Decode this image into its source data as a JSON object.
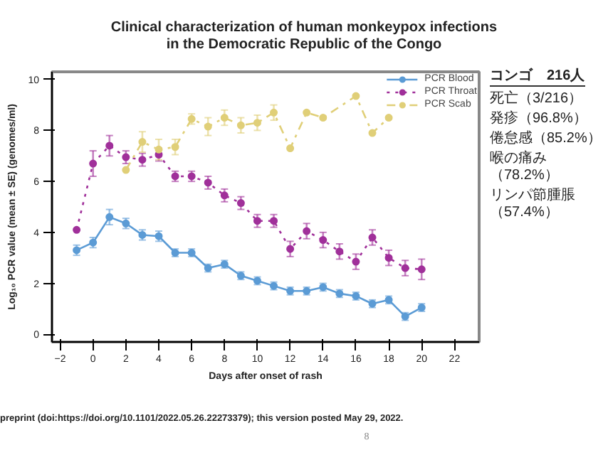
{
  "chart_data": {
    "type": "line",
    "title": "Clinical characterization of human monkeypox infections\nin the Democratic Republic of the Congo",
    "xlabel": "Days after onset of rash",
    "ylabel": "Log₁₀ PCR value (mean ± SE) (genomes/ml)",
    "xlim": [
      -2.5,
      23.5
    ],
    "xticks": [
      -2,
      0,
      2,
      4,
      6,
      8,
      10,
      12,
      14,
      16,
      18,
      20,
      22
    ],
    "ylim": [
      -0.3,
      10.3
    ],
    "yticks": [
      0,
      2,
      4,
      6,
      8,
      10
    ],
    "marker": "circle",
    "legend": "top right",
    "grid": false,
    "series": [
      {
        "name": "PCR Blood",
        "color": "#5b9bd5",
        "line_style": "solid",
        "x": [
          -1,
          0,
          1,
          2,
          3,
          4,
          5,
          6,
          7,
          8,
          9,
          10,
          11,
          12,
          13,
          14,
          15,
          16,
          17,
          18,
          19,
          20
        ],
        "values": [
          3.3,
          3.6,
          4.6,
          4.35,
          3.9,
          3.85,
          3.2,
          3.2,
          2.6,
          2.75,
          2.3,
          2.1,
          1.9,
          1.7,
          1.7,
          1.85,
          1.6,
          1.5,
          1.2,
          1.35,
          0.7,
          1.05
        ],
        "errors": [
          0.2,
          0.2,
          0.3,
          0.2,
          0.2,
          0.2,
          0.15,
          0.15,
          0.15,
          0.15,
          0.15,
          0.15,
          0.15,
          0.15,
          0.15,
          0.15,
          0.15,
          0.15,
          0.15,
          0.15,
          0.15,
          0.15
        ]
      },
      {
        "name": "PCR Throat",
        "color": "#a0309a",
        "line_style": "dotted",
        "x": [
          -1,
          0,
          1,
          2,
          3,
          4,
          5,
          6,
          7,
          8,
          9,
          10,
          11,
          12,
          13,
          14,
          15,
          16,
          17,
          18,
          19,
          20
        ],
        "values": [
          4.1,
          6.7,
          7.4,
          6.95,
          6.85,
          7.05,
          6.2,
          6.2,
          5.95,
          5.45,
          5.15,
          4.45,
          4.45,
          3.35,
          4.05,
          3.7,
          3.25,
          2.85,
          3.8,
          3.0,
          2.6,
          2.55
        ],
        "errors": [
          null,
          0.5,
          0.4,
          0.25,
          0.25,
          0.25,
          0.2,
          0.2,
          0.25,
          0.25,
          0.25,
          0.25,
          0.25,
          0.3,
          0.3,
          0.3,
          0.3,
          0.3,
          0.3,
          0.3,
          0.3,
          0.4
        ]
      },
      {
        "name": "PCR Scab",
        "color": "#e0cf78",
        "line_style": "dashdot",
        "x": [
          2,
          3,
          4,
          5,
          6,
          7,
          8,
          9,
          10,
          11,
          12,
          13,
          14,
          16,
          17,
          18
        ],
        "values": [
          6.45,
          7.55,
          7.25,
          7.35,
          8.45,
          8.15,
          8.5,
          8.2,
          8.3,
          8.7,
          7.3,
          8.7,
          8.5,
          9.35,
          7.9,
          8.5
        ],
        "errors": [
          null,
          0.4,
          0.4,
          0.3,
          0.2,
          0.35,
          0.3,
          0.3,
          0.3,
          0.3,
          null,
          null,
          null,
          null,
          null,
          null
        ]
      }
    ],
    "annotations": [
      "コンゴ　216人",
      "死亡（3/216）",
      "発疹（96.8%）",
      "倦怠感（85.2%）",
      "喉の痛み（78.2%）",
      "リンパ節腫脹（57.4%）",
      "preprint (doi:https://doi.org/10.1101/2022.05.26.22273379); this version posted May 29, 2022.",
      "8"
    ]
  }
}
